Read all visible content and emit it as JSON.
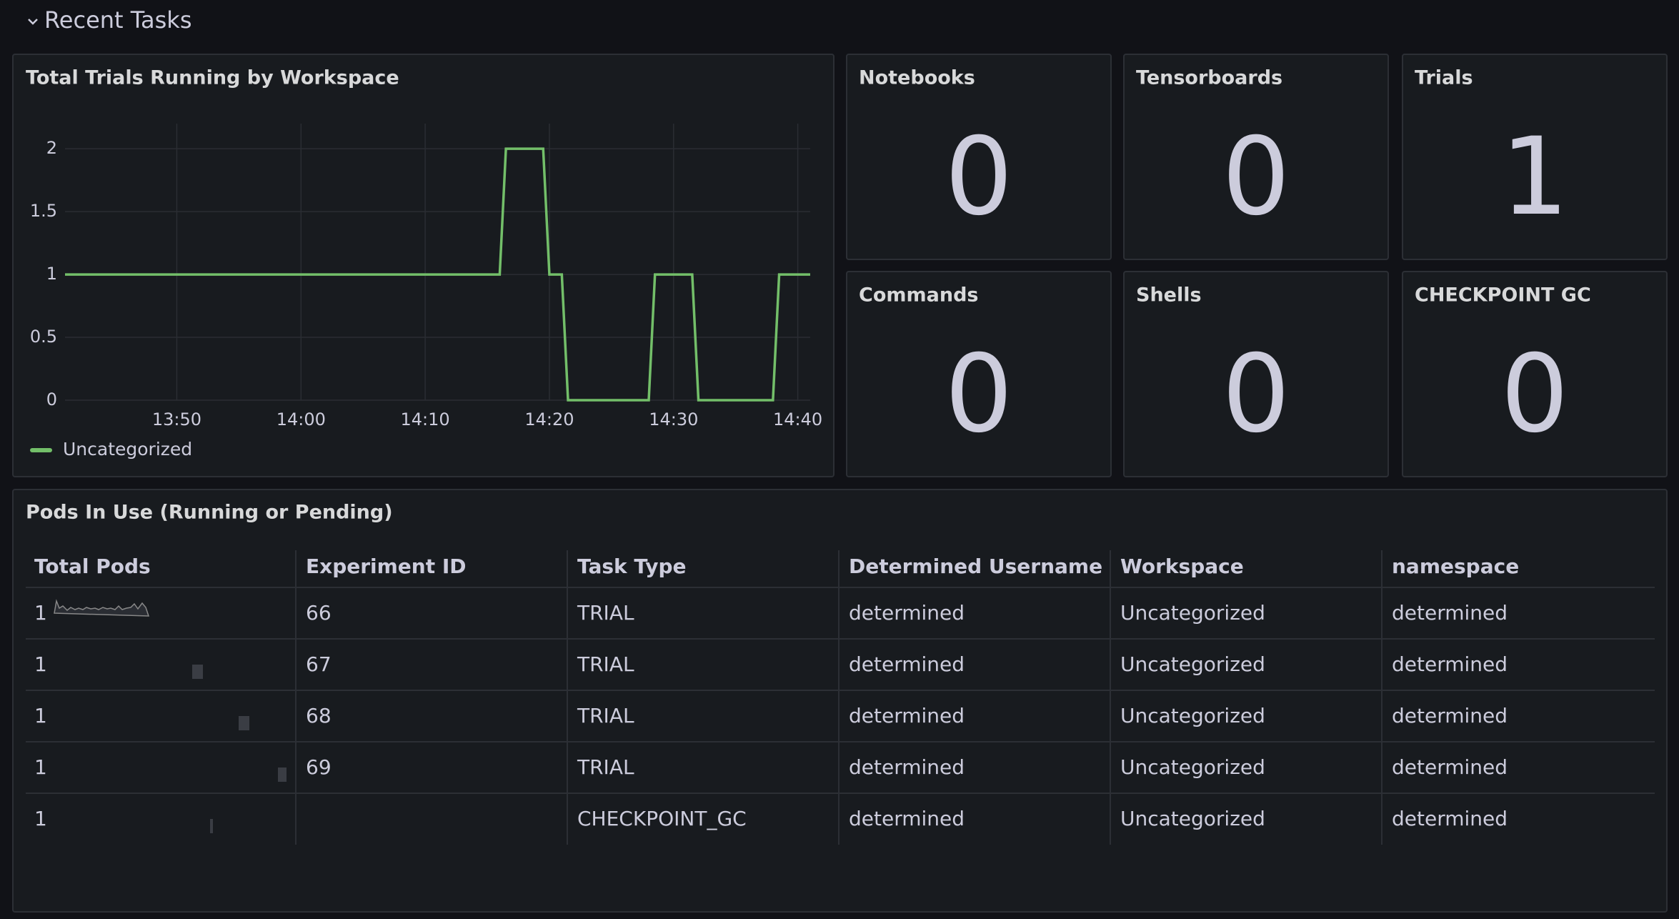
{
  "section": {
    "title": "Recent Tasks"
  },
  "chart_data": {
    "type": "line",
    "title": "Total Trials Running by Workspace",
    "x": [
      "13:41:00",
      "14:16:00",
      "14:16:30",
      "14:19:30",
      "14:20:00",
      "14:21:00",
      "14:21:30",
      "14:28:00",
      "14:28:30",
      "14:31:30",
      "14:32:00",
      "14:38:00",
      "14:38:30",
      "14:41:00"
    ],
    "series": [
      {
        "name": "Uncategorized",
        "color": "#73bf69",
        "values": [
          1,
          1,
          2,
          2,
          1,
          1,
          0,
          0,
          1,
          1,
          0,
          0,
          1,
          1
        ]
      }
    ],
    "xlim": [
      "13:41:00",
      "14:41:00"
    ],
    "xticks": [
      "13:50",
      "14:00",
      "14:10",
      "14:20",
      "14:30",
      "14:40"
    ],
    "ylim": [
      0,
      2.2
    ],
    "yticks": [
      0,
      0.5,
      1,
      1.5,
      2
    ],
    "grid": true,
    "legend": "bottom-left"
  },
  "stats": [
    {
      "title": "Notebooks",
      "value": 0
    },
    {
      "title": "Tensorboards",
      "value": 0
    },
    {
      "title": "Trials",
      "value": 1
    },
    {
      "title": "Commands",
      "value": 0
    },
    {
      "title": "Shells",
      "value": 0
    },
    {
      "title": "CHECKPOINT GC",
      "value": 0
    }
  ],
  "table": {
    "title": "Pods In Use (Running or Pending)",
    "columns": [
      "Total Pods",
      "Experiment ID",
      "Task Type",
      "Determined Username",
      "Workspace",
      "namespace"
    ],
    "rows": [
      [
        1,
        "66",
        "TRIAL",
        "determined",
        "Uncategorized",
        "determined"
      ],
      [
        1,
        "67",
        "TRIAL",
        "determined",
        "Uncategorized",
        "determined"
      ],
      [
        1,
        "68",
        "TRIAL",
        "determined",
        "Uncategorized",
        "determined"
      ],
      [
        1,
        "69",
        "TRIAL",
        "determined",
        "Uncategorized",
        "determined"
      ],
      [
        1,
        null,
        "CHECKPOINT_GC",
        "determined",
        "Uncategorized",
        "determined"
      ]
    ]
  }
}
